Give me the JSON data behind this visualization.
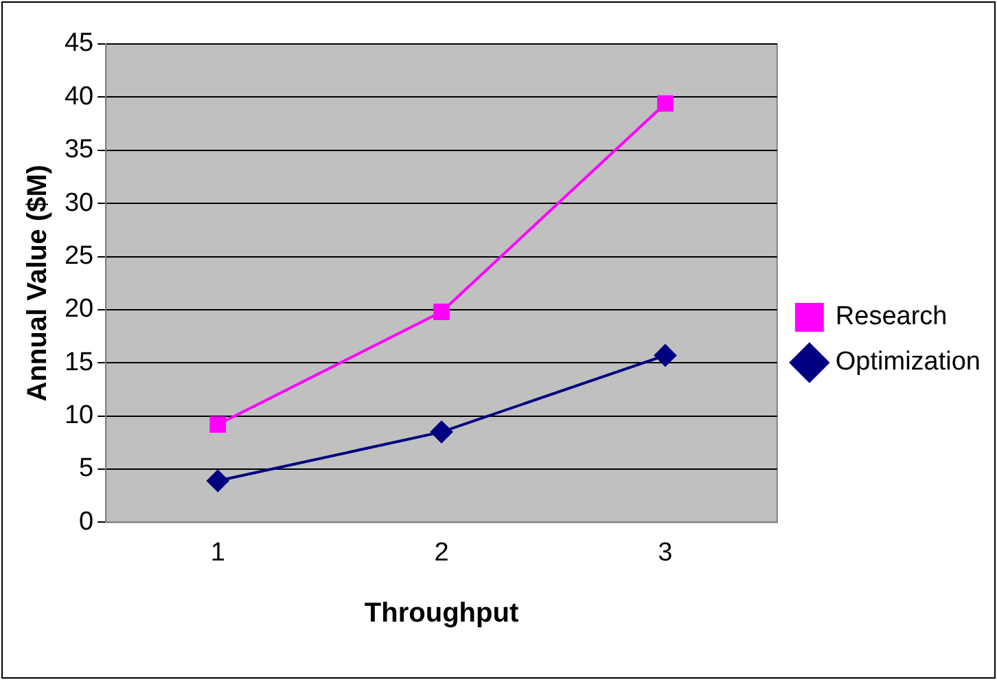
{
  "chart_data": {
    "type": "line",
    "xlabel": "Throughput",
    "ylabel": "Annual Value ($M)",
    "categories": [
      "1",
      "2",
      "3"
    ],
    "series": [
      {
        "name": "Research",
        "color": "#ff00ff",
        "values": [
          9.2,
          19.8,
          39.4
        ],
        "marker": "square"
      },
      {
        "name": "Optimization",
        "color": "#000080",
        "values": [
          3.9,
          8.5,
          15.7
        ],
        "marker": "diamond"
      }
    ],
    "ylim": [
      0,
      45
    ],
    "yticks": [
      0,
      5,
      10,
      15,
      20,
      25,
      30,
      35,
      40,
      45
    ],
    "grid": "y",
    "legend": "right"
  }
}
